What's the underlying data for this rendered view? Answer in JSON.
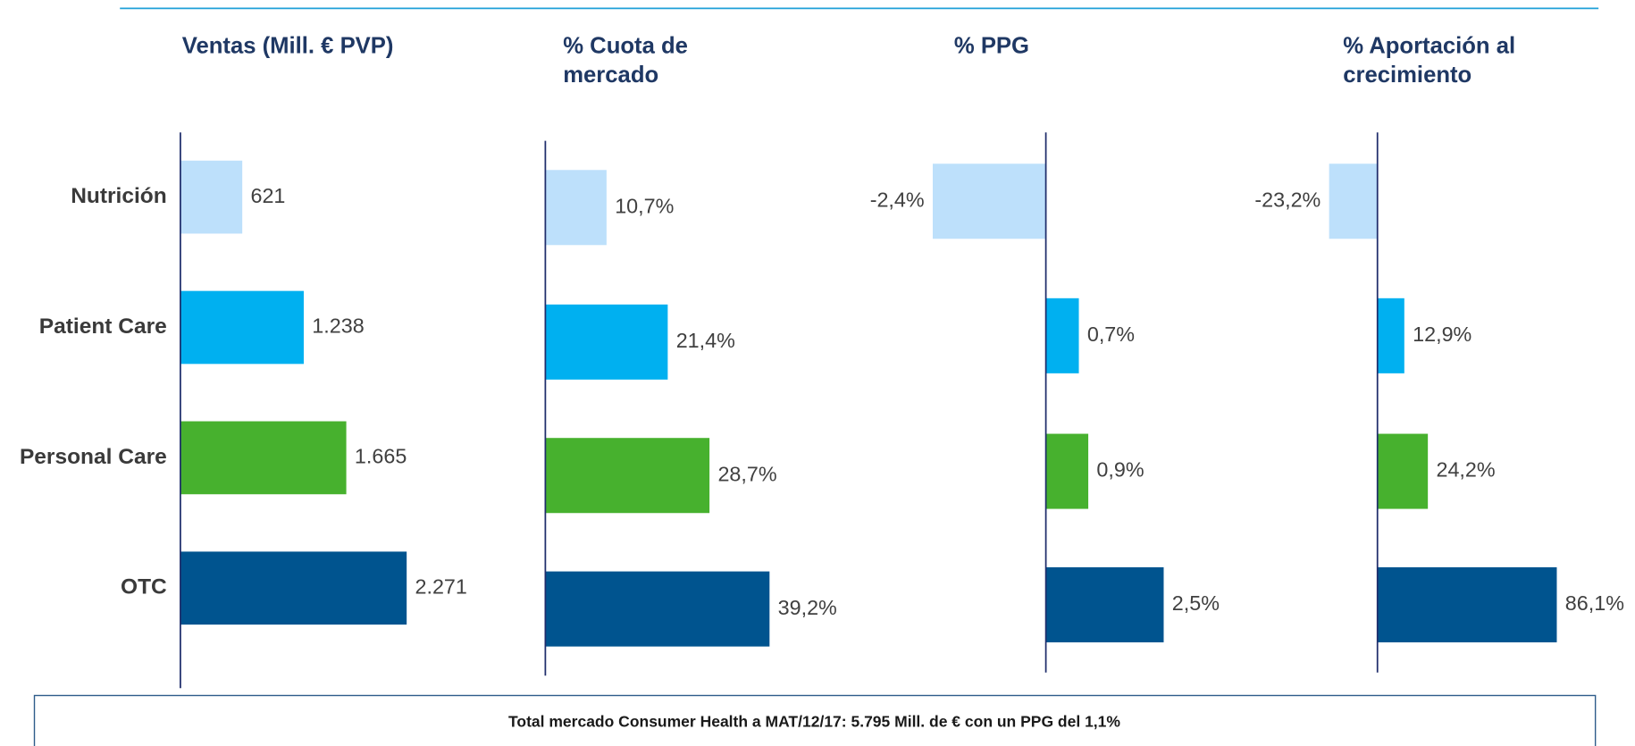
{
  "chart_data": [
    {
      "type": "bar",
      "title": [
        "Ventas (Mill. € PVP)"
      ],
      "categories": [
        "Nutrición",
        "Patient Care",
        "Personal Care",
        "OTC"
      ],
      "values": [
        621,
        1238,
        1665,
        2271
      ],
      "value_labels": [
        "621",
        "1.238",
        "1.665",
        "2.271"
      ],
      "colors": [
        "#bde0fb",
        "#00b0f0",
        "#47b12e",
        "#00548f"
      ]
    },
    {
      "type": "bar",
      "title": [
        "% Cuota de",
        "mercado"
      ],
      "values": [
        10.7,
        21.4,
        28.7,
        39.2
      ],
      "value_labels": [
        "10,7%",
        "21,4%",
        "28,7%",
        "39,2%"
      ],
      "colors": [
        "#bde0fb",
        "#00b0f0",
        "#47b12e",
        "#00548f"
      ]
    },
    {
      "type": "bar",
      "title": [
        "% PPG"
      ],
      "values": [
        -2.4,
        0.7,
        0.9,
        2.5
      ],
      "value_labels": [
        "-2,4%",
        "0,7%",
        "0,9%",
        "2,5%"
      ],
      "colors": [
        "#bde0fb",
        "#00b0f0",
        "#47b12e",
        "#00548f"
      ]
    },
    {
      "type": "bar",
      "title": [
        "% Aportación al",
        "crecimiento"
      ],
      "values": [
        -23.2,
        12.9,
        24.2,
        86.1
      ],
      "value_labels": [
        "-23,2%",
        "12,9%",
        "24,2%",
        "86,1%"
      ],
      "colors": [
        "#bde0fb",
        "#00b0f0",
        "#47b12e",
        "#00548f"
      ]
    }
  ],
  "footnote": "Total mercado Consumer Health a MAT/12/17: 5.795 Mill. de € con un PPG del 1,1%"
}
